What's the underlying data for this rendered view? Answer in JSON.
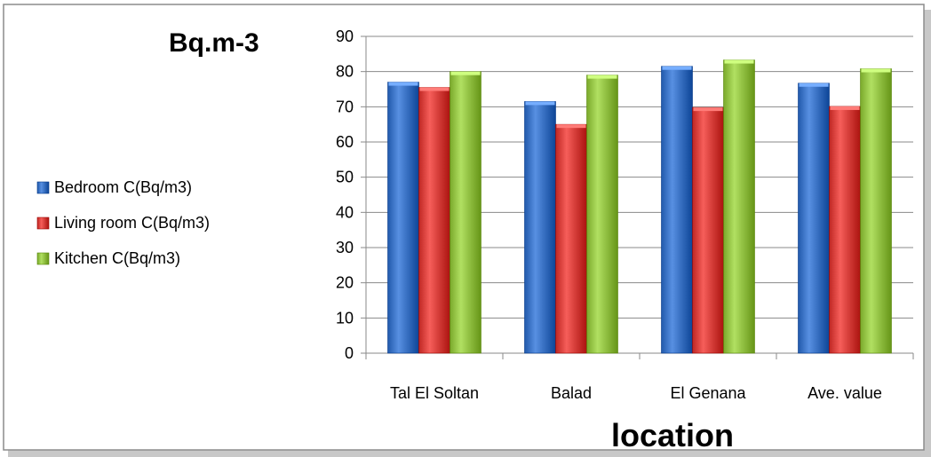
{
  "chart_data": {
    "type": "bar",
    "title": "",
    "xlabel": "location",
    "ylabel": "Bq.m-3",
    "categories": [
      "Tal El Soltan",
      "Balad",
      "El Genana",
      "Ave. value"
    ],
    "series": [
      {
        "name": "Bedroom C(Bq/m3)",
        "values": [
          77,
          71.5,
          81.5,
          76.7
        ],
        "color": "#3a72c4"
      },
      {
        "name": "Living room C(Bq/m3)",
        "values": [
          75.5,
          65,
          69.8,
          70.1
        ],
        "color": "#d8403c"
      },
      {
        "name": "Kitchen  C(Bq/m3)",
        "values": [
          80,
          79,
          83.3,
          80.8
        ],
        "color": "#93c244"
      }
    ],
    "ylim": [
      0,
      90
    ],
    "yticks": [
      0,
      10,
      20,
      30,
      40,
      50,
      60,
      70,
      80,
      90
    ],
    "grid": true,
    "legend_position": "left"
  }
}
